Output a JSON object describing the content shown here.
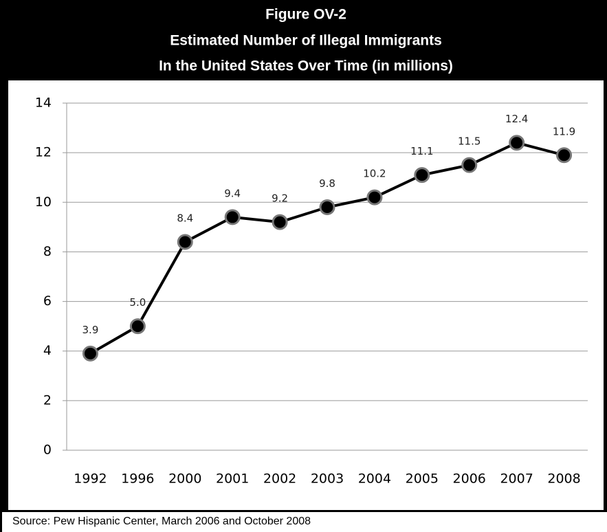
{
  "chart_data": {
    "type": "line",
    "title": [
      "Figure OV-2",
      "Estimated Number of Illegal Immigrants",
      "In the United States Over Time (in millions)"
    ],
    "source": "Source:  Pew Hispanic Center, March 2006 and October 2008",
    "categories": [
      "1992",
      "1996",
      "2000",
      "2001",
      "2002",
      "2003",
      "2004",
      "2005",
      "2006",
      "2007",
      "2008"
    ],
    "values": [
      3.9,
      5.0,
      8.4,
      9.4,
      9.2,
      9.8,
      10.2,
      11.1,
      11.5,
      12.4,
      11.9
    ],
    "value_labels": [
      "3.9",
      "5.0",
      "8.4",
      "9.4",
      "9.2",
      "9.8",
      "10.2",
      "11.1",
      "11.5",
      "12.4",
      "11.9"
    ],
    "color": "#000000",
    "ylim": [
      0,
      14
    ],
    "yticks": [
      0,
      2,
      4,
      6,
      8,
      10,
      12,
      14
    ],
    "grid": true
  }
}
